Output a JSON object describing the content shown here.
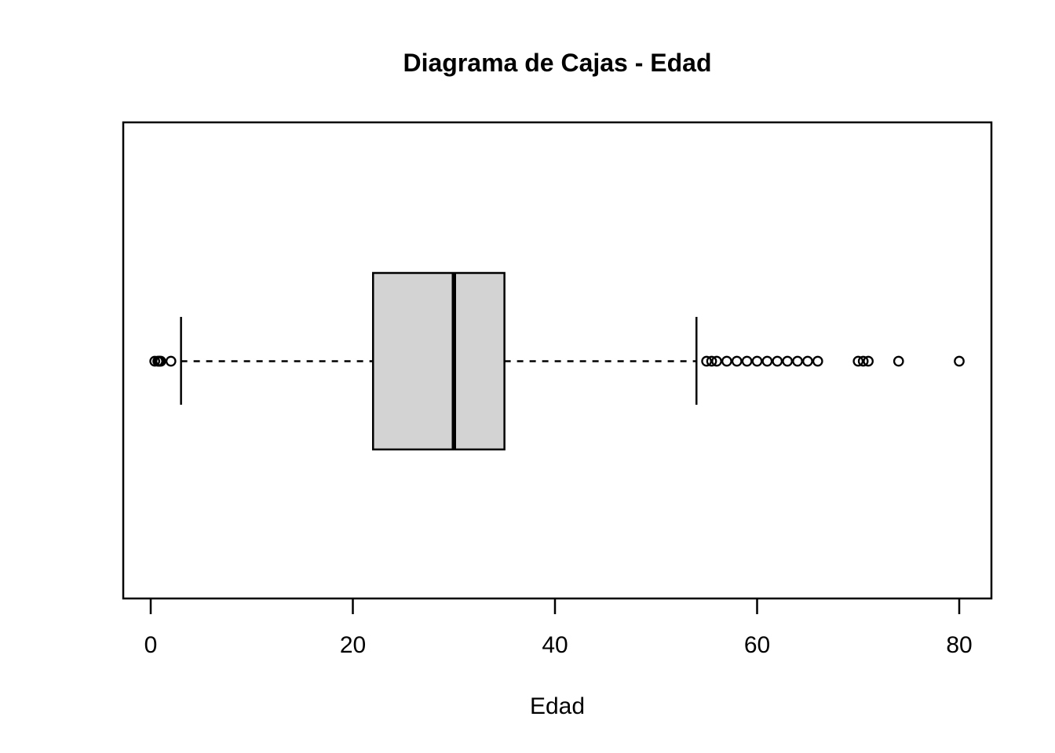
{
  "chart_data": {
    "type": "boxplot",
    "orientation": "horizontal",
    "title": "Diagrama de Cajas - Edad",
    "xlabel": "Edad",
    "x_axis": {
      "ticks": [
        0,
        20,
        40,
        60,
        80
      ],
      "range": [
        -2.7,
        83.2
      ],
      "grid": false
    },
    "series": [
      {
        "name": "Edad",
        "stats": {
          "whisker_low": 3,
          "q1": 22,
          "median": 30,
          "q3": 35,
          "whisker_high": 54
        },
        "outliers_low": [
          0.4,
          0.7,
          0.8,
          0.9,
          1,
          2
        ],
        "outliers_high": [
          55,
          55.5,
          56,
          57,
          58,
          59,
          60,
          61,
          62,
          63,
          64,
          65,
          66,
          70,
          70.5,
          71,
          74,
          80
        ]
      }
    ],
    "style": {
      "box_fill": "#D3D3D3",
      "stroke": "#000000",
      "background": "#FFFFFF",
      "whisker_line_style": "dashed"
    }
  }
}
